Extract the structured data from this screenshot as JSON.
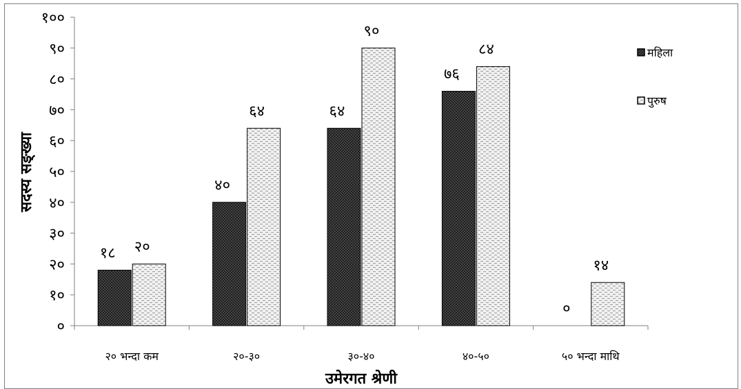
{
  "chart_data": {
    "type": "bar",
    "categories": [
      "२० भन्दा कम",
      "२०-३०",
      "३०-४०",
      "४०-५०",
      "५० भन्दा माथि"
    ],
    "series": [
      {
        "name": "महिला",
        "values": [
          18,
          40,
          64,
          76,
          0
        ],
        "labels": [
          "१८",
          "४०",
          "६४",
          "७६",
          "०"
        ],
        "color": "#3a3a3a",
        "pattern": "dark-crosshatch"
      },
      {
        "name": "पुरुष",
        "values": [
          20,
          64,
          90,
          84,
          14
        ],
        "labels": [
          "२०",
          "६४",
          "९०",
          "८४",
          "१४"
        ],
        "color": "#e0e0e0",
        "pattern": "light-dashed"
      }
    ],
    "xlabel": "उमेरगत श्रेणी",
    "ylabel": "सदस्य सङ्ख्या",
    "ylim": [
      0,
      100
    ],
    "yticks": [
      0,
      10,
      20,
      30,
      40,
      50,
      60,
      70,
      80,
      90,
      100
    ],
    "ytick_labels": [
      "०",
      "१०",
      "२०",
      "३०",
      "४०",
      "५०",
      "६०",
      "७०",
      "८०",
      "९०",
      "१००"
    ],
    "grid": false,
    "legend_position": "top-right"
  }
}
